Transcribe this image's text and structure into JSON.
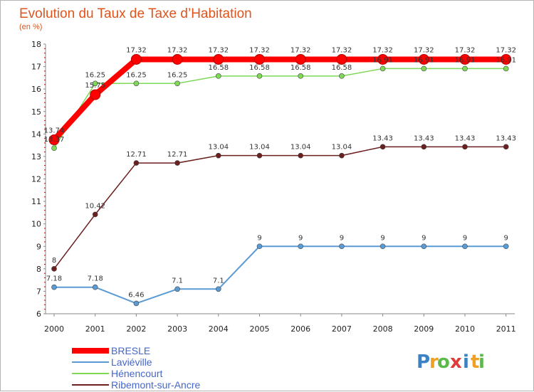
{
  "chart_data": {
    "type": "line",
    "title": "Evolution du Taux de Taxe d’Habitation",
    "subtitle": "(en %)",
    "x": [
      "2000",
      "2001",
      "2002",
      "2003",
      "2004",
      "2005",
      "2006",
      "2007",
      "2008",
      "2009",
      "2010",
      "2011"
    ],
    "ylim": [
      6,
      18
    ],
    "yticks": [
      6,
      7,
      8,
      9,
      10,
      11,
      12,
      13,
      14,
      15,
      16,
      17,
      18
    ],
    "grid": false,
    "legend_position": "bottom-left",
    "series": [
      {
        "name": "BRESLE",
        "color": "#ff0000",
        "values": [
          13.74,
          15.75,
          17.32,
          17.32,
          17.32,
          17.32,
          17.32,
          17.32,
          17.32,
          17.32,
          17.32,
          17.32
        ],
        "labels": [
          "13.74",
          "15.75",
          "17.32",
          "17.32",
          "17.32",
          "17.32",
          "17.32",
          "17.32",
          "17.32",
          "17.32",
          "17.32",
          "17.32"
        ]
      },
      {
        "name": "Laviéville",
        "color": "#5b9bd5",
        "values": [
          7.18,
          7.18,
          6.46,
          7.1,
          7.1,
          9,
          9,
          9,
          9,
          9,
          9,
          9
        ],
        "labels": [
          "7.18",
          "7.18",
          "6.46",
          "7.1",
          "7.1",
          "9",
          "9",
          "9",
          "9",
          "9",
          "9",
          "9"
        ]
      },
      {
        "name": "Hénencourt",
        "color": "#7ed957",
        "values": [
          13.37,
          16.25,
          16.25,
          16.25,
          16.58,
          16.58,
          16.58,
          16.58,
          16.91,
          16.91,
          16.91,
          16.91
        ],
        "labels": [
          "13.37",
          "16.25",
          "16.25",
          "16.25",
          "16.58",
          "16.58",
          "16.58",
          "16.58",
          "16.91",
          "16.91",
          "16.91",
          "16.91"
        ]
      },
      {
        "name": "Ribemont-sur-Ancre",
        "color": "#6b1f1f",
        "values": [
          8,
          10.42,
          12.71,
          12.71,
          13.04,
          13.04,
          13.04,
          13.04,
          13.43,
          13.43,
          13.43,
          13.43
        ],
        "labels": [
          "8",
          "10.42",
          "12.71",
          "12.71",
          "13.04",
          "13.04",
          "13.04",
          "13.04",
          "13.43",
          "13.43",
          "13.43",
          "13.43"
        ]
      }
    ]
  },
  "logo": {
    "text": "Proxiti",
    "letters": [
      "P",
      "r",
      "o",
      "x",
      "i",
      "t",
      "i"
    ],
    "colors": [
      "#3b82c4",
      "#f0a020",
      "#5bb84a",
      "#e03a3a",
      "#3b82c4",
      "#f0a020",
      "#5bb84a"
    ]
  }
}
